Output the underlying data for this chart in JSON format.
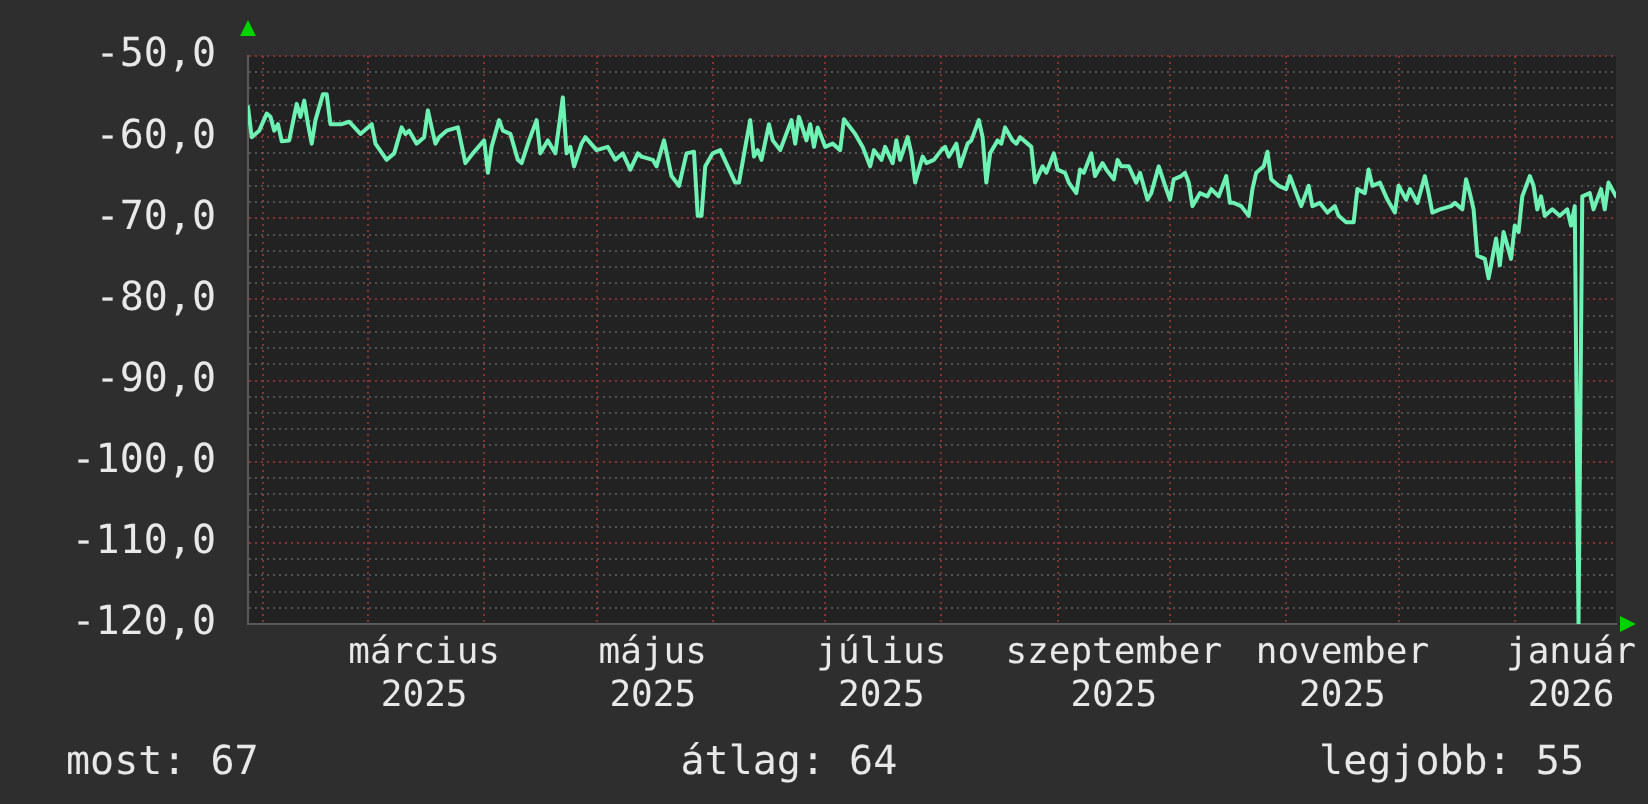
{
  "chart_data": {
    "type": "line",
    "color": "#6ef2b4",
    "marker": "none",
    "grid": true,
    "xlim": [
      "2025-01-28",
      "2026-01-28"
    ],
    "xticks": [
      {
        "value": "2025-02-01",
        "label": null
      },
      {
        "value": "2025-03-01",
        "label": null
      },
      {
        "value": "2025-03-16",
        "label": "március 2025"
      },
      {
        "value": "2025-04-01",
        "label": null
      },
      {
        "value": "2025-05-01",
        "label": null
      },
      {
        "value": "2025-05-16",
        "label": "május 2025"
      },
      {
        "value": "2025-06-01",
        "label": null
      },
      {
        "value": "2025-07-01",
        "label": null
      },
      {
        "value": "2025-07-16",
        "label": "július 2025"
      },
      {
        "value": "2025-08-01",
        "label": null
      },
      {
        "value": "2025-09-01",
        "label": null
      },
      {
        "value": "2025-09-16",
        "label": "szeptember 2025"
      },
      {
        "value": "2025-10-01",
        "label": null
      },
      {
        "value": "2025-11-01",
        "label": null
      },
      {
        "value": "2025-11-16",
        "label": "november 2025"
      },
      {
        "value": "2025-12-01",
        "label": null
      },
      {
        "value": "2026-01-01",
        "label": null
      },
      {
        "value": "2026-01-16",
        "label": "január 2026"
      }
    ],
    "ylim": [
      -120,
      -50
    ],
    "yticks": [
      {
        "value": -120,
        "label": "-120,0"
      },
      {
        "value": -118,
        "label": null
      },
      {
        "value": -116,
        "label": null
      },
      {
        "value": -114,
        "label": null
      },
      {
        "value": -112,
        "label": null
      },
      {
        "value": -110,
        "label": "-110,0"
      },
      {
        "value": -108,
        "label": null
      },
      {
        "value": -106,
        "label": null
      },
      {
        "value": -104,
        "label": null
      },
      {
        "value": -102,
        "label": null
      },
      {
        "value": -100,
        "label": "-100,0"
      },
      {
        "value": -98,
        "label": null
      },
      {
        "value": -96,
        "label": null
      },
      {
        "value": -94,
        "label": null
      },
      {
        "value": -92,
        "label": null
      },
      {
        "value": -90,
        "label": "-90,0"
      },
      {
        "value": -88,
        "label": null
      },
      {
        "value": -86,
        "label": null
      },
      {
        "value": -84,
        "label": null
      },
      {
        "value": -82,
        "label": null
      },
      {
        "value": -80,
        "label": "-80,0"
      },
      {
        "value": -78,
        "label": null
      },
      {
        "value": -76,
        "label": null
      },
      {
        "value": -74,
        "label": null
      },
      {
        "value": -72,
        "label": null
      },
      {
        "value": -70,
        "label": "-70,0"
      },
      {
        "value": -68,
        "label": null
      },
      {
        "value": -66,
        "label": null
      },
      {
        "value": -64,
        "label": null
      },
      {
        "value": -62,
        "label": null
      },
      {
        "value": -60,
        "label": "-60,0"
      },
      {
        "value": -58,
        "label": null
      },
      {
        "value": -56,
        "label": null
      },
      {
        "value": -54,
        "label": null
      },
      {
        "value": -52,
        "label": null
      },
      {
        "value": -50,
        "label": "-50,0"
      }
    ],
    "annotations": [
      "most: 67",
      "átlag: 64",
      "legjobb: 55"
    ],
    "x": [
      "2025-01-28",
      "2025-01-29",
      "2025-01-31",
      "2025-02-02",
      "2025-02-03",
      "2025-02-04",
      "2025-02-05",
      "2025-02-06",
      "2025-02-08",
      "2025-02-10",
      "2025-02-11",
      "2025-02-12",
      "2025-02-13",
      "2025-02-14",
      "2025-02-15",
      "2025-02-17",
      "2025-02-18",
      "2025-02-19",
      "2025-02-22",
      "2025-02-24",
      "2025-02-27",
      "2025-03-02",
      "2025-03-03",
      "2025-03-06",
      "2025-03-08",
      "2025-03-10",
      "2025-03-11",
      "2025-03-12",
      "2025-03-14",
      "2025-03-16",
      "2025-03-17",
      "2025-03-18",
      "2025-03-19",
      "2025-03-20",
      "2025-03-22",
      "2025-03-25",
      "2025-03-27",
      "2025-03-29",
      "2025-04-01",
      "2025-04-02",
      "2025-04-03",
      "2025-04-05",
      "2025-04-06",
      "2025-04-08",
      "2025-04-10",
      "2025-04-11",
      "2025-04-13",
      "2025-04-15",
      "2025-04-16",
      "2025-04-18",
      "2025-04-20",
      "2025-04-22",
      "2025-04-23",
      "2025-04-24",
      "2025-04-25",
      "2025-04-27",
      "2025-04-28",
      "2025-05-01",
      "2025-05-04",
      "2025-05-06",
      "2025-05-08",
      "2025-05-10",
      "2025-05-12",
      "2025-05-13",
      "2025-05-16",
      "2025-05-17",
      "2025-05-19",
      "2025-05-21",
      "2025-05-23",
      "2025-05-25",
      "2025-05-27",
      "2025-05-28",
      "2025-05-29",
      "2025-05-30",
      "2025-06-01",
      "2025-06-03",
      "2025-06-05",
      "2025-06-07",
      "2025-06-08",
      "2025-06-10",
      "2025-06-11",
      "2025-06-12",
      "2025-06-13",
      "2025-06-14",
      "2025-06-16",
      "2025-06-17",
      "2025-06-19",
      "2025-06-22",
      "2025-06-23",
      "2025-06-24",
      "2025-06-26",
      "2025-06-27",
      "2025-06-28",
      "2025-06-29",
      "2025-07-01",
      "2025-07-03",
      "2025-07-05",
      "2025-07-06",
      "2025-07-09",
      "2025-07-11",
      "2025-07-13",
      "2025-07-14",
      "2025-07-16",
      "2025-07-17",
      "2025-07-19",
      "2025-07-20",
      "2025-07-21",
      "2025-07-23",
      "2025-07-24",
      "2025-07-25",
      "2025-07-27",
      "2025-07-28",
      "2025-07-30",
      "2025-08-01",
      "2025-08-02",
      "2025-08-03",
      "2025-08-05",
      "2025-08-06",
      "2025-08-08",
      "2025-08-09",
      "2025-08-11",
      "2025-08-12",
      "2025-08-13",
      "2025-08-14",
      "2025-08-16",
      "2025-08-17",
      "2025-08-18",
      "2025-08-20",
      "2025-08-21",
      "2025-08-22",
      "2025-08-24",
      "2025-08-25",
      "2025-08-26",
      "2025-08-28",
      "2025-08-29",
      "2025-08-31",
      "2025-09-01",
      "2025-09-03",
      "2025-09-04",
      "2025-09-06",
      "2025-09-07",
      "2025-09-08",
      "2025-09-10",
      "2025-09-11",
      "2025-09-13",
      "2025-09-14",
      "2025-09-16",
      "2025-09-17",
      "2025-09-18",
      "2025-09-19",
      "2025-09-20",
      "2025-09-22",
      "2025-09-23",
      "2025-09-25",
      "2025-09-26",
      "2025-09-28",
      "2025-09-30",
      "2025-10-01",
      "2025-10-02",
      "2025-10-04",
      "2025-10-05",
      "2025-10-06",
      "2025-10-07",
      "2025-10-09",
      "2025-10-11",
      "2025-10-12",
      "2025-10-14",
      "2025-10-16",
      "2025-10-17",
      "2025-10-18",
      "2025-10-20",
      "2025-10-22",
      "2025-10-23",
      "2025-10-24",
      "2025-10-26",
      "2025-10-27",
      "2025-10-28",
      "2025-10-30",
      "2025-11-01",
      "2025-11-02",
      "2025-11-04",
      "2025-11-05",
      "2025-11-07",
      "2025-11-08",
      "2025-11-10",
      "2025-11-12",
      "2025-11-14",
      "2025-11-15",
      "2025-11-17",
      "2025-11-19",
      "2025-11-20",
      "2025-11-22",
      "2025-11-23",
      "2025-11-24",
      "2025-11-26",
      "2025-11-28",
      "2025-11-30",
      "2025-12-01",
      "2025-12-03",
      "2025-12-04",
      "2025-12-06",
      "2025-12-08",
      "2025-12-09",
      "2025-12-10",
      "2025-12-12",
      "2025-12-15",
      "2025-12-16",
      "2025-12-18",
      "2025-12-19",
      "2025-12-20",
      "2025-12-21",
      "2025-12-22",
      "2025-12-24",
      "2025-12-25",
      "2025-12-27",
      "2025-12-28",
      "2025-12-29",
      "2025-12-31",
      "2026-01-01",
      "2026-01-02",
      "2026-01-03",
      "2026-01-05",
      "2026-01-06",
      "2026-01-07",
      "2026-01-08",
      "2026-01-09",
      "2026-01-11",
      "2026-01-13",
      "2026-01-15",
      "2026-01-16",
      "2026-01-17",
      "2026-01-18",
      "2026-01-19",
      "2026-01-21",
      "2026-01-22",
      "2026-01-24",
      "2026-01-25",
      "2026-01-26",
      "2026-01-28"
    ],
    "values": [
      -56.3,
      -60.0,
      -59.2,
      -57.1,
      -57.5,
      -59.2,
      -58.4,
      -60.5,
      -60.4,
      -55.9,
      -57.5,
      -55.5,
      -58.4,
      -60.8,
      -57.9,
      -54.7,
      -54.7,
      -58.4,
      -58.4,
      -58.1,
      -59.6,
      -58.4,
      -60.8,
      -62.8,
      -62.0,
      -58.8,
      -59.6,
      -59.2,
      -60.8,
      -60.0,
      -56.7,
      -58.8,
      -60.8,
      -60.0,
      -59.2,
      -58.8,
      -63.2,
      -62.0,
      -60.4,
      -64.4,
      -61.2,
      -57.9,
      -59.2,
      -59.6,
      -62.8,
      -63.2,
      -60.4,
      -57.9,
      -62.0,
      -60.4,
      -62.0,
      -55.1,
      -62.0,
      -61.2,
      -63.6,
      -60.8,
      -60.0,
      -61.6,
      -61.2,
      -62.8,
      -62.0,
      -64.0,
      -62.0,
      -62.4,
      -62.8,
      -63.6,
      -60.4,
      -64.8,
      -66.0,
      -62.0,
      -61.8,
      -69.7,
      -69.7,
      -63.6,
      -62.0,
      -61.6,
      -63.6,
      -65.6,
      -65.6,
      -60.4,
      -57.9,
      -62.4,
      -61.6,
      -62.8,
      -58.4,
      -60.4,
      -61.6,
      -57.9,
      -60.8,
      -57.5,
      -60.4,
      -58.4,
      -61.2,
      -58.8,
      -61.2,
      -60.8,
      -61.6,
      -57.8,
      -59.6,
      -61.2,
      -63.6,
      -61.6,
      -62.8,
      -61.2,
      -63.2,
      -60.4,
      -62.8,
      -60.0,
      -62.0,
      -65.6,
      -62.4,
      -63.2,
      -62.8,
      -61.6,
      -61.2,
      -62.4,
      -60.8,
      -63.6,
      -60.8,
      -60.4,
      -57.9,
      -60.0,
      -65.6,
      -62.0,
      -60.4,
      -60.8,
      -58.8,
      -60.4,
      -60.8,
      -60.0,
      -60.8,
      -61.2,
      -65.6,
      -63.6,
      -64.4,
      -62.0,
      -64.0,
      -64.4,
      -65.6,
      -66.9,
      -64.0,
      -64.4,
      -62.0,
      -64.8,
      -63.2,
      -64.0,
      -65.2,
      -62.8,
      -63.6,
      -63.6,
      -63.6,
      -65.6,
      -64.4,
      -67.7,
      -66.9,
      -63.6,
      -66.4,
      -67.7,
      -65.2,
      -64.8,
      -64.4,
      -65.6,
      -68.5,
      -66.9,
      -67.3,
      -66.4,
      -67.3,
      -64.8,
      -68.1,
      -68.1,
      -68.5,
      -69.7,
      -66.4,
      -64.4,
      -63.6,
      -61.8,
      -65.2,
      -66.0,
      -66.4,
      -64.8,
      -67.3,
      -68.5,
      -66.0,
      -68.5,
      -68.1,
      -69.3,
      -68.5,
      -69.7,
      -70.5,
      -70.5,
      -66.4,
      -66.9,
      -64.0,
      -66.0,
      -65.6,
      -67.7,
      -69.3,
      -66.0,
      -67.7,
      -66.4,
      -68.1,
      -64.8,
      -66.9,
      -69.3,
      -68.9,
      -68.5,
      -68.1,
      -68.9,
      -65.2,
      -66.9,
      -68.9,
      -74.6,
      -75.0,
      -77.4,
      -72.5,
      -75.8,
      -71.7,
      -75.0,
      -70.9,
      -71.7,
      -67.3,
      -64.8,
      -66.0,
      -68.9,
      -67.3,
      -69.7,
      -68.9,
      -69.7,
      -68.9,
      -70.9,
      -68.5,
      -120.0,
      -67.3,
      -66.9,
      -68.9,
      -66.4,
      -68.9,
      -65.6,
      -67.3
    ]
  }
}
